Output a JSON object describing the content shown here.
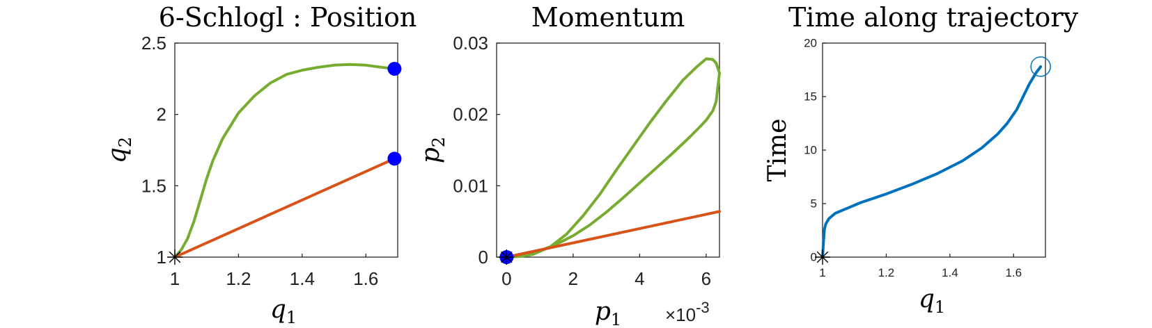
{
  "colors": {
    "green": "#77ac30",
    "orange": "#d95319",
    "blue_marker": "#0000ff",
    "time_line": "#0072bd"
  },
  "chart_data": [
    {
      "type": "line",
      "title": "6-Schlogl : Position",
      "xlabel_base": "q",
      "xlabel_sub": "1",
      "ylabel_base": "q",
      "ylabel_sub": "2",
      "xlim": [
        1,
        1.7
      ],
      "ylim": [
        1,
        2.5
      ],
      "xticks": [
        1,
        1.2,
        1.4,
        1.6
      ],
      "xtick_labels": [
        "1",
        "1.2",
        "1.4",
        "1.6"
      ],
      "yticks": [
        1,
        1.5,
        2,
        2.5
      ],
      "ytick_labels": [
        "1",
        "1.5",
        "2",
        "2.5"
      ],
      "series": [
        {
          "color": "green",
          "x": [
            1.0,
            1.02,
            1.04,
            1.06,
            1.08,
            1.1,
            1.12,
            1.15,
            1.2,
            1.25,
            1.3,
            1.35,
            1.4,
            1.45,
            1.5,
            1.55,
            1.6,
            1.65,
            1.69
          ],
          "y": [
            1.0,
            1.05,
            1.13,
            1.25,
            1.4,
            1.55,
            1.68,
            1.83,
            2.01,
            2.13,
            2.22,
            2.28,
            2.31,
            2.33,
            2.345,
            2.35,
            2.345,
            2.33,
            2.32
          ]
        },
        {
          "color": "orange",
          "x": [
            1.0,
            1.69
          ],
          "y": [
            1.0,
            1.69
          ]
        }
      ],
      "markers": [
        {
          "shape": "dot",
          "color": "blue_marker",
          "x": 1.69,
          "y": 2.32
        },
        {
          "shape": "dot",
          "color": "blue_marker",
          "x": 1.69,
          "y": 1.69
        },
        {
          "shape": "asterisk",
          "color": "#000000",
          "x": 1.0,
          "y": 1.0
        }
      ]
    },
    {
      "type": "line",
      "title": "Momentum",
      "xlabel_base": "p",
      "xlabel_sub": "1",
      "ylabel_base": "p",
      "ylabel_sub": "2",
      "x_exponent_base": "×10",
      "x_exponent_power": "-3",
      "xlim": [
        -0.0003,
        0.0064
      ],
      "ylim": [
        0,
        0.03
      ],
      "xticks": [
        0,
        0.002,
        0.004,
        0.006
      ],
      "xtick_labels": [
        "0",
        "2",
        "4",
        "6"
      ],
      "yticks": [
        0,
        0.01,
        0.02,
        0.03
      ],
      "ytick_labels": [
        "0",
        "0.01",
        "0.02",
        "0.03"
      ],
      "series": [
        {
          "color": "green",
          "x": [
            0.0,
            0.0005,
            0.001,
            0.0015,
            0.002,
            0.0025,
            0.003,
            0.0035,
            0.004,
            0.0045,
            0.005,
            0.0055,
            0.0058,
            0.006,
            0.0062,
            0.0063,
            0.0064,
            0.0063,
            0.0062,
            0.006,
            0.0057,
            0.0053,
            0.0048,
            0.0043,
            0.0038,
            0.0033,
            0.0028,
            0.0023,
            0.0018,
            0.0013,
            0.0008,
            0.0004,
            0.0
          ],
          "y": [
            0.0,
            0.0003,
            0.0009,
            0.0018,
            0.003,
            0.0045,
            0.0063,
            0.0083,
            0.0104,
            0.0125,
            0.0146,
            0.0168,
            0.0182,
            0.0192,
            0.0205,
            0.0218,
            0.0258,
            0.0272,
            0.0277,
            0.0278,
            0.0266,
            0.0248,
            0.0219,
            0.0188,
            0.0155,
            0.0122,
            0.0088,
            0.0058,
            0.0032,
            0.0014,
            0.0004,
            0.0001,
            0.0
          ]
        },
        {
          "color": "orange",
          "x": [
            0.0,
            0.0064
          ],
          "y": [
            0.0,
            0.0064
          ]
        }
      ],
      "markers": [
        {
          "shape": "dot",
          "color": "blue_marker",
          "x": 0.0,
          "y": 0.0
        },
        {
          "shape": "asterisk",
          "color": "#000000",
          "x": 0.0,
          "y": 0.0
        }
      ]
    },
    {
      "type": "line",
      "title": "Time along trajectory",
      "xlabel_base": "q",
      "xlabel_sub": "1",
      "ylabel": "Time",
      "xlim": [
        1,
        1.7
      ],
      "ylim": [
        0,
        20
      ],
      "xticks": [
        1,
        1.2,
        1.4,
        1.6
      ],
      "xtick_labels": [
        "1",
        "1.2",
        "1.4",
        "1.6"
      ],
      "yticks": [
        0,
        5,
        10,
        15,
        20
      ],
      "ytick_labels": [
        "0",
        "5",
        "10",
        "15",
        "20"
      ],
      "series": [
        {
          "color": "time_line",
          "x": [
            1.0,
            1.003,
            1.006,
            1.01,
            1.02,
            1.04,
            1.08,
            1.12,
            1.2,
            1.28,
            1.36,
            1.44,
            1.5,
            1.55,
            1.58,
            1.61,
            1.63,
            1.65,
            1.67,
            1.685
          ],
          "y": [
            0.0,
            1.5,
            2.6,
            3.1,
            3.6,
            4.1,
            4.6,
            5.1,
            5.9,
            6.8,
            7.8,
            9.0,
            10.2,
            11.5,
            12.5,
            13.8,
            15.0,
            16.2,
            17.2,
            17.8
          ]
        }
      ],
      "markers": [
        {
          "shape": "ring",
          "color": "time_line",
          "x": 1.685,
          "y": 17.8
        },
        {
          "shape": "asterisk",
          "color": "#000000",
          "x": 1.0,
          "y": 0.0
        }
      ]
    }
  ]
}
